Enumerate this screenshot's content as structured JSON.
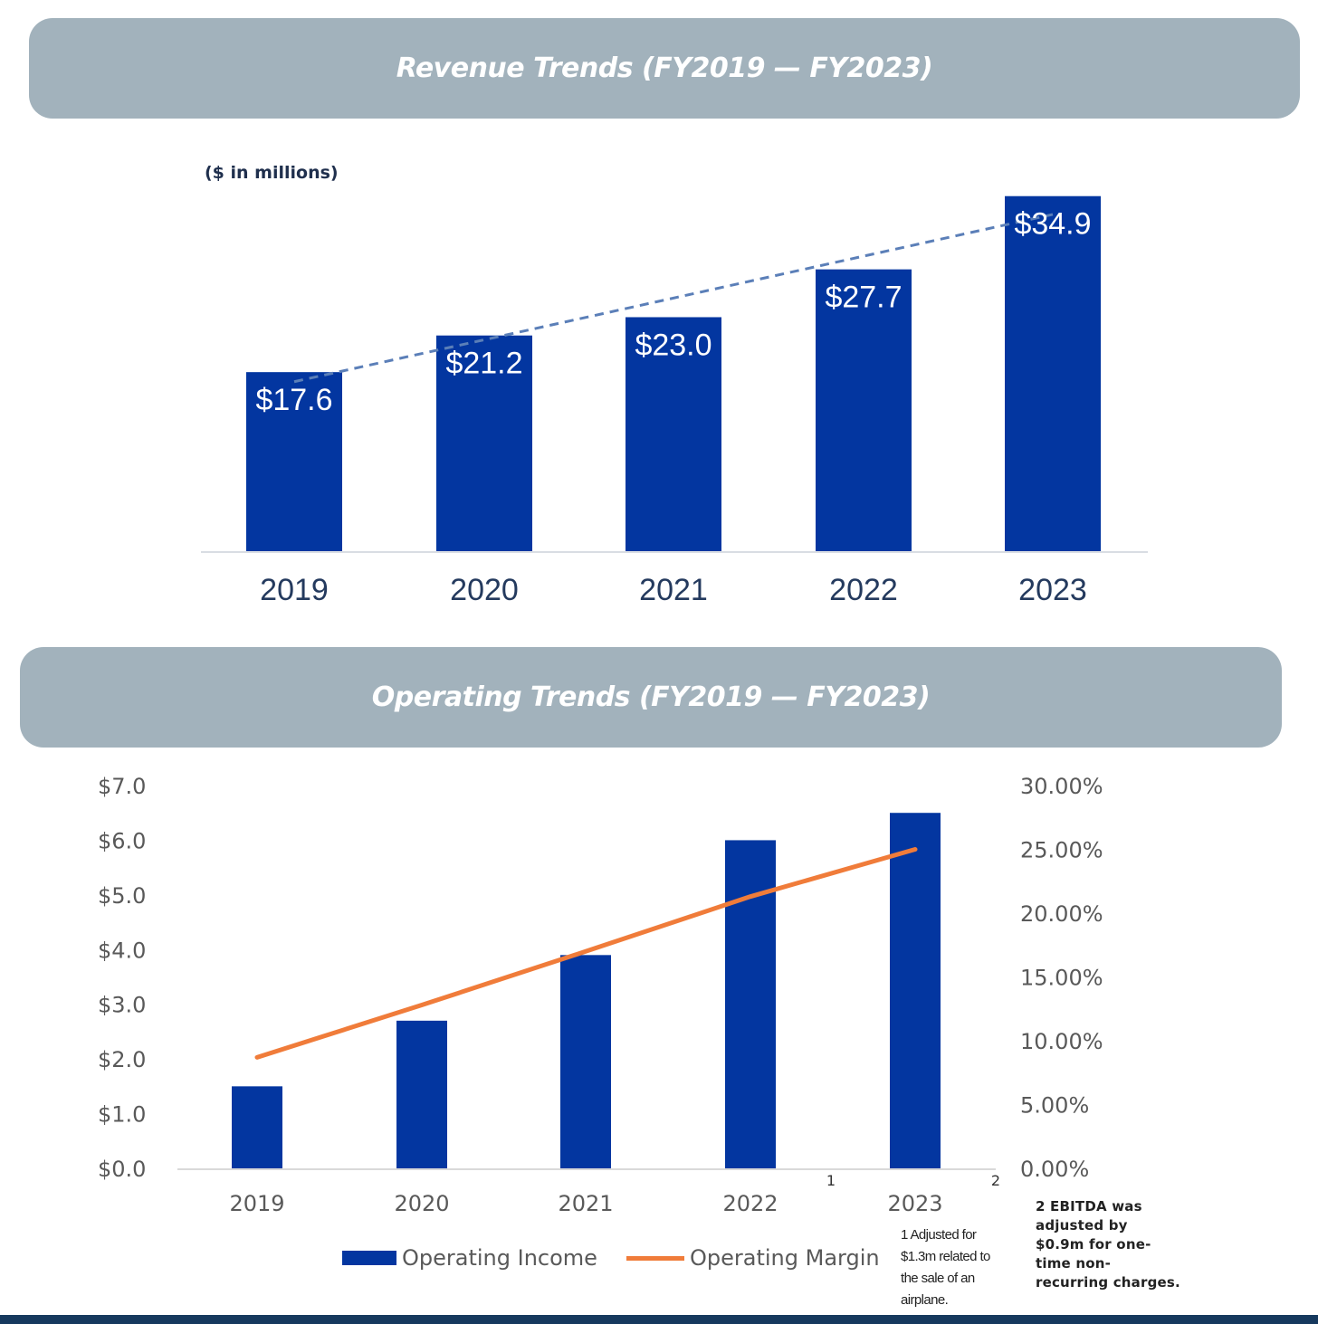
{
  "colors": {
    "banner": "#a2b2bc",
    "bar": "#0336a0",
    "trend_line": "#5b7fb8",
    "margin_line": "#f07c3a",
    "bottom_rule": "#16395e"
  },
  "revenue_section": {
    "title": "Revenue Trends (FY2019 — FY2023)",
    "unit_note": "($ in millions)"
  },
  "operating_section": {
    "title": "Operating Trends (FY2019 — FY2023)"
  },
  "chart_data": [
    {
      "type": "bar",
      "categories": [
        "2019",
        "2020",
        "2021",
        "2022",
        "2023"
      ],
      "values": [
        17.6,
        21.2,
        23.0,
        27.7,
        34.9
      ],
      "data_labels": [
        "$17.6",
        "$21.2",
        "$23.0",
        "$27.7",
        "$34.9"
      ],
      "trendline": "linear, dashed",
      "ylim": [
        0,
        35
      ],
      "grid": false,
      "legend": "none"
    },
    {
      "type": "bar",
      "categories": [
        "2019",
        "2020",
        "2021",
        "2022",
        "2023"
      ],
      "category_superscripts": [
        "",
        "",
        "",
        "1",
        "2"
      ],
      "series": [
        {
          "name": "Operating Income",
          "kind": "bar",
          "axis": "left",
          "values": [
            1.5,
            2.7,
            3.9,
            6.0,
            6.5
          ]
        },
        {
          "name": "Operating Margin",
          "kind": "line",
          "axis": "right",
          "values": [
            8.7,
            12.8,
            17.0,
            21.3,
            25.0
          ]
        }
      ],
      "y_left": {
        "ticks": [
          "$0.0",
          "$1.0",
          "$2.0",
          "$3.0",
          "$4.0",
          "$5.0",
          "$6.0",
          "$7.0"
        ],
        "lim": [
          0,
          7
        ]
      },
      "y_right": {
        "ticks": [
          "0.00%",
          "5.00%",
          "10.00%",
          "15.00%",
          "20.00%",
          "25.00%",
          "30.00%"
        ],
        "lim": [
          0,
          30
        ]
      },
      "grid": false,
      "legend": "bottom"
    }
  ],
  "footnotes": {
    "note1": "1 Adjusted for $1.3m related to the sale of an airplane.",
    "note2": "2 EBITDA was adjusted by $0.9m for one-time non-recurring charges."
  }
}
